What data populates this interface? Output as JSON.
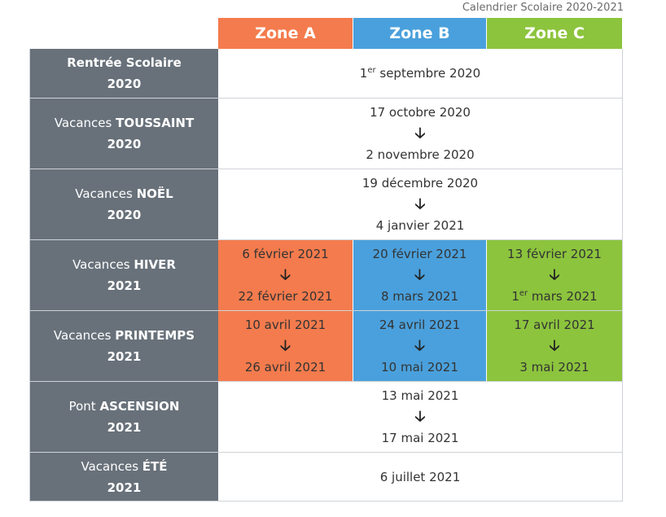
{
  "caption": "Calendrier Scolaire 2020-2021",
  "zones": [
    "Zone A",
    "Zone B",
    "Zone C"
  ],
  "arrow": "🡣",
  "rows": [
    {
      "label_pre": "Rentrée Scolaire",
      "label_strong": "",
      "year": "2020",
      "span": {
        "prefix": "1",
        "sup": "er",
        "suffix": " septembre 2020"
      }
    },
    {
      "label_pre": "Vacances ",
      "label_strong": "TOUSSAINT",
      "year": "2020",
      "span_from": "17 octobre 2020",
      "span_to": "2 novembre 2020"
    },
    {
      "label_pre": "Vacances ",
      "label_strong": "NOËL",
      "year": "2020",
      "span_from": "19 décembre 2020",
      "span_to": "4 janvier 2021"
    },
    {
      "label_pre": "Vacances ",
      "label_strong": "HIVER",
      "year": "2021",
      "zone_a": {
        "from": "6 février 2021",
        "to": "22 février 2021"
      },
      "zone_b": {
        "from": "20 février 2021",
        "to": "8 mars 2021"
      },
      "zone_c": {
        "from": "13 février 2021",
        "to_prefix": "1",
        "to_sup": "er",
        "to_suffix": " mars 2021"
      }
    },
    {
      "label_pre": "Vacances ",
      "label_strong": "PRINTEMPS",
      "year": "2021",
      "zone_a": {
        "from": "10 avril 2021",
        "to": "26 avril 2021"
      },
      "zone_b": {
        "from": "24 avril 2021",
        "to": "10 mai 2021"
      },
      "zone_c": {
        "from": "17 avril 2021",
        "to": "3 mai 2021"
      }
    },
    {
      "label_pre": "Pont ",
      "label_strong": "ASCENSION",
      "year": "2021",
      "span_from": "13 mai 2021",
      "span_to": "17 mai 2021"
    },
    {
      "label_pre": "Vacances ",
      "label_strong": "ÉTÉ",
      "year": "2021",
      "span_single": "6 juillet 2021"
    }
  ],
  "colors": {
    "zone_a": "#f47b4d",
    "zone_b": "#4aa0dc",
    "zone_c": "#8cc43d",
    "label_bg": "#68717a"
  }
}
